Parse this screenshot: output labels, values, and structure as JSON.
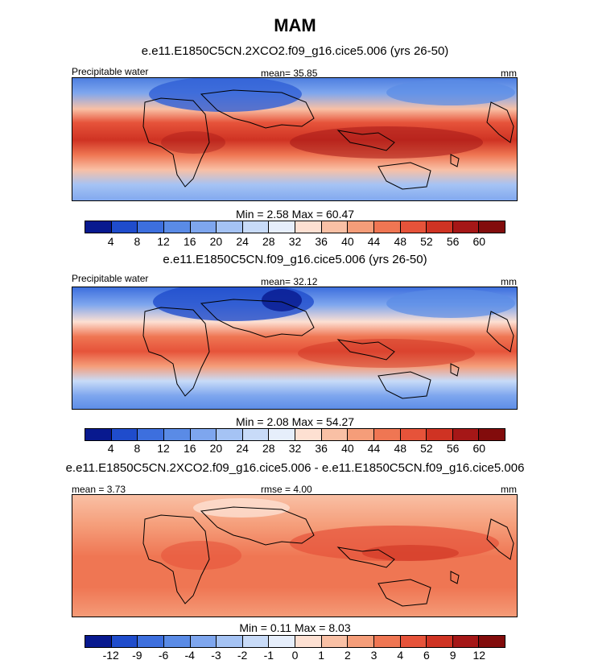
{
  "figure": {
    "season_title": "MAM",
    "panels": [
      {
        "case_title": "e.e11.E1850C5CN.2XCO2.f09_g16.cice5.006 (yrs 26-50)",
        "left_label": "Precipitable water",
        "center_label": "mean=  35.85",
        "units": "mm",
        "min_max": "Min =   2.58 Max =  60.47",
        "palette": "abs"
      },
      {
        "case_title": "e.e11.E1850C5CN.f09_g16.cice5.006 (yrs 26-50)",
        "left_label": "Precipitable water",
        "center_label": "mean=  32.12",
        "units": "mm",
        "min_max": "Min =   2.08 Max =  54.27",
        "palette": "abs"
      },
      {
        "case_title": "e.e11.E1850C5CN.2XCO2.f09_g16.cice5.006 - e.e11.E1850C5CN.f09_g16.cice5.006",
        "left_label": "mean =   3.73",
        "center_label": "rmse =  4.00",
        "units": "mm",
        "min_max": "Min =   0.11 Max =   8.03",
        "palette": "diff"
      }
    ]
  },
  "colorbars": {
    "abs": {
      "ticks": [
        "4",
        "8",
        "12",
        "16",
        "20",
        "24",
        "28",
        "32",
        "36",
        "40",
        "44",
        "48",
        "52",
        "56",
        "60"
      ],
      "colors": [
        "#08198f",
        "#1f4ccc",
        "#3d6fde",
        "#5a8be6",
        "#7ea6ee",
        "#a5c3f4",
        "#c8dbf8",
        "#e6eefb",
        "#fde0d2",
        "#f9c0a5",
        "#f59d79",
        "#ef7653",
        "#e6533a",
        "#cf3323",
        "#a51717",
        "#820c0c"
      ]
    },
    "diff": {
      "ticks": [
        "-12",
        "-9",
        "-6",
        "-4",
        "-3",
        "-2",
        "-1",
        "0",
        "1",
        "2",
        "3",
        "4",
        "6",
        "9",
        "12"
      ],
      "colors": [
        "#08198f",
        "#1f4ccc",
        "#3d6fde",
        "#5a8be6",
        "#7ea6ee",
        "#a5c3f4",
        "#c8dbf8",
        "#e6eefb",
        "#fde0d2",
        "#f9c0a5",
        "#f59d79",
        "#ef7653",
        "#e6533a",
        "#cf3323",
        "#a51717",
        "#820c0c"
      ]
    }
  }
}
